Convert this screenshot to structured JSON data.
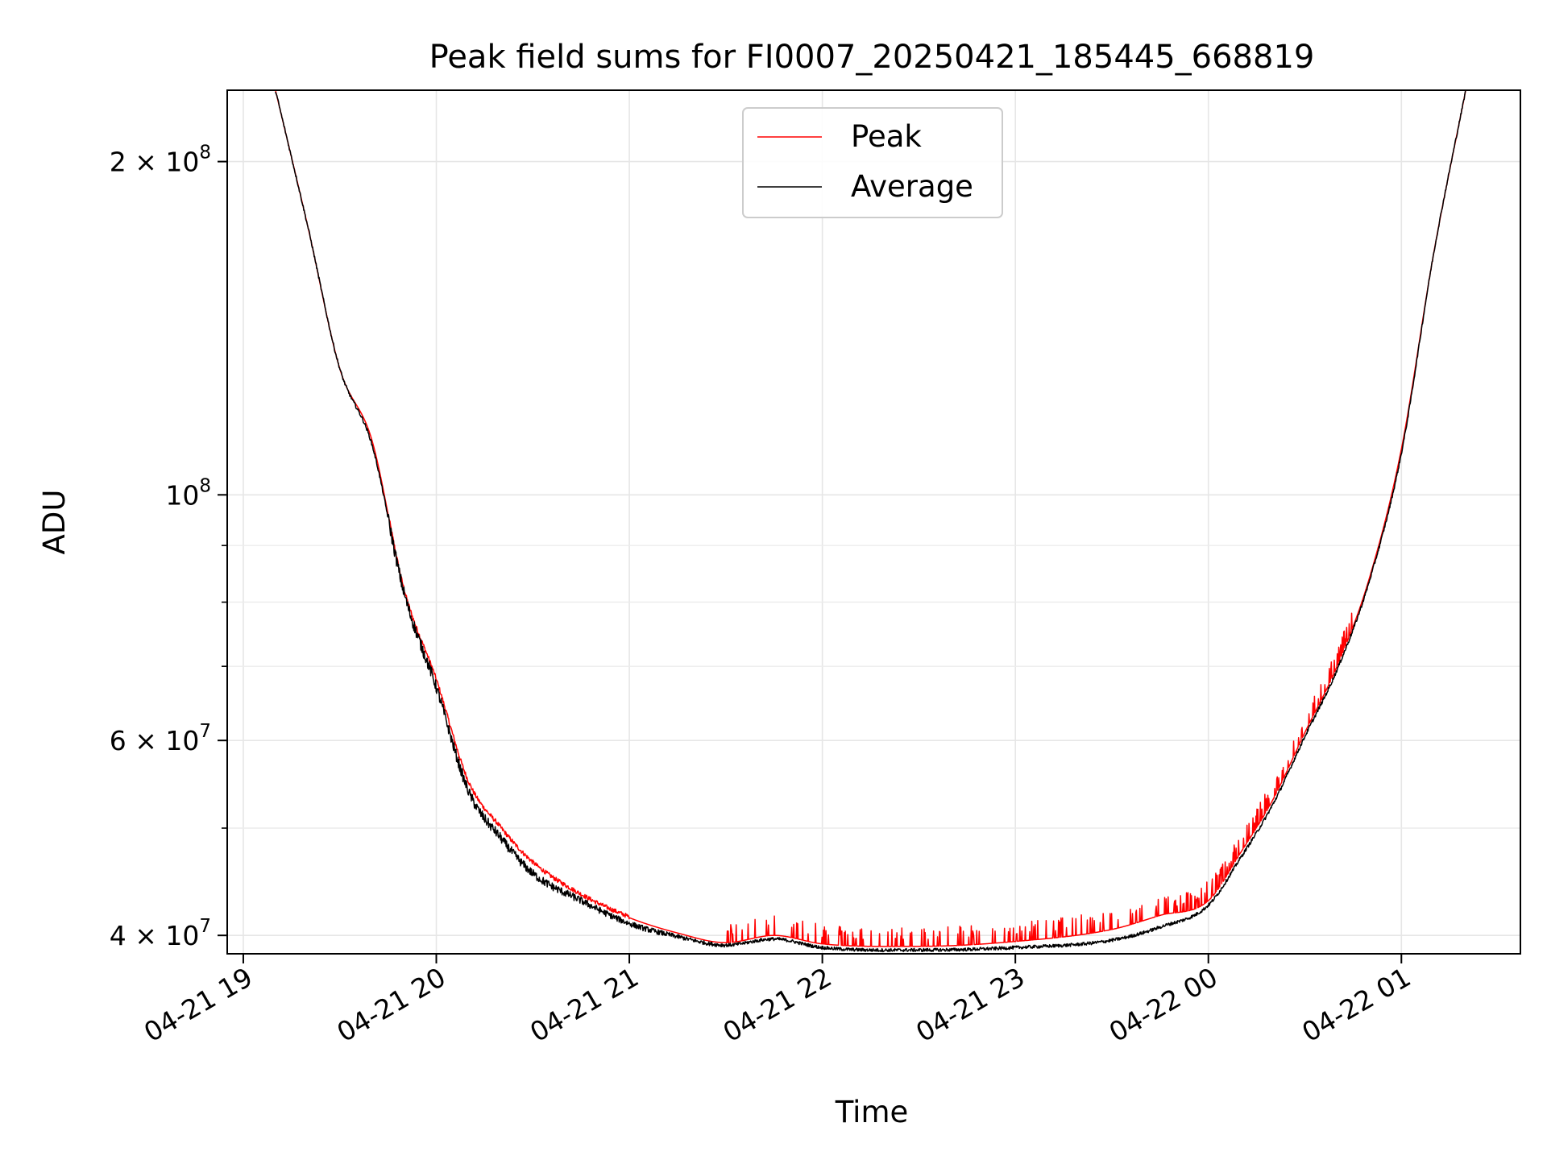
{
  "chart_data": {
    "type": "line",
    "title": "Peak field sums for FI0007_20250421_185445_668819",
    "xlabel": "Time",
    "ylabel": "ADU",
    "y_scale": "log",
    "x_unit": "time",
    "xlim": [
      "2025-04-21 18:55",
      "2025-04-22 01:37"
    ],
    "ylim": [
      38500000,
      232000000
    ],
    "x_ticks": [
      "2025-04-21 19:00",
      "2025-04-21 20:00",
      "2025-04-21 21:00",
      "2025-04-21 22:00",
      "2025-04-21 23:00",
      "2025-04-22 00:00",
      "2025-04-22 01:00"
    ],
    "x_tick_labels": [
      "04-21 19",
      "04-21 20",
      "04-21 21",
      "04-21 22",
      "04-21 23",
      "04-22 00",
      "04-22 01"
    ],
    "y_ticks": [
      40000000,
      60000000,
      100000000,
      200000000
    ],
    "y_tick_labels": [
      {
        "mantissa": "4",
        "sep": "×",
        "base": "10",
        "exp": "7"
      },
      {
        "mantissa": "6",
        "sep": "×",
        "base": "10",
        "exp": "7"
      },
      {
        "mantissa": "",
        "sep": "",
        "base": "10",
        "exp": "8"
      },
      {
        "mantissa": "2",
        "sep": "×",
        "base": "10",
        "exp": "8"
      }
    ],
    "y_minor_ticks": [
      50000000,
      70000000,
      80000000,
      90000000
    ],
    "grid": true,
    "legend_position": "top-center",
    "series": [
      {
        "name": "Peak",
        "color": "#ff0000",
        "noise": "spiky-up",
        "x": [
          "2025-04-21 19:10",
          "2025-04-21 19:20",
          "2025-04-21 19:30",
          "2025-04-21 19:40",
          "2025-04-21 19:50",
          "2025-04-21 20:00",
          "2025-04-21 20:10",
          "2025-04-21 20:20",
          "2025-04-21 20:30",
          "2025-04-21 20:45",
          "2025-04-21 21:00",
          "2025-04-21 21:15",
          "2025-04-21 21:30",
          "2025-04-21 21:45",
          "2025-04-21 22:00",
          "2025-04-21 22:30",
          "2025-04-21 23:00",
          "2025-04-21 23:30",
          "2025-04-21 23:45",
          "2025-04-22 00:00",
          "2025-04-22 00:10",
          "2025-04-22 00:20",
          "2025-04-22 00:30",
          "2025-04-22 00:40",
          "2025-04-22 00:50",
          "2025-04-22 01:00",
          "2025-04-22 01:10",
          "2025-04-22 01:20"
        ],
        "values": [
          232000000,
          175000000,
          130000000,
          112000000,
          82000000,
          68000000,
          55000000,
          50000000,
          46500000,
          43500000,
          41500000,
          40200000,
          39400000,
          40000000,
          39300000,
          39100000,
          39500000,
          40500000,
          41700000,
          43000000,
          47500000,
          53000000,
          61000000,
          70000000,
          84000000,
          110000000,
          165000000,
          232000000
        ]
      },
      {
        "name": "Average",
        "color": "#000000",
        "noise": "jitter",
        "x": [
          "2025-04-21 19:10",
          "2025-04-21 19:20",
          "2025-04-21 19:30",
          "2025-04-21 19:40",
          "2025-04-21 19:50",
          "2025-04-21 20:00",
          "2025-04-21 20:10",
          "2025-04-21 20:20",
          "2025-04-21 20:30",
          "2025-04-21 20:45",
          "2025-04-21 21:00",
          "2025-04-21 21:15",
          "2025-04-21 21:30",
          "2025-04-21 21:45",
          "2025-04-21 22:00",
          "2025-04-21 22:30",
          "2025-04-21 23:00",
          "2025-04-21 23:30",
          "2025-04-21 23:45",
          "2025-04-22 00:00",
          "2025-04-22 00:10",
          "2025-04-22 00:20",
          "2025-04-22 00:30",
          "2025-04-22 00:40",
          "2025-04-22 00:50",
          "2025-04-22 01:00",
          "2025-04-22 01:10",
          "2025-04-22 01:20"
        ],
        "values": [
          232000000,
          175000000,
          130000000,
          111000000,
          81500000,
          67000000,
          54000000,
          49000000,
          45500000,
          43000000,
          41000000,
          39900000,
          39200000,
          39700000,
          39000000,
          38800000,
          39000000,
          39600000,
          40700000,
          42600000,
          47000000,
          52500000,
          60500000,
          69500000,
          83500000,
          109000000,
          165000000,
          232000000
        ]
      }
    ]
  }
}
